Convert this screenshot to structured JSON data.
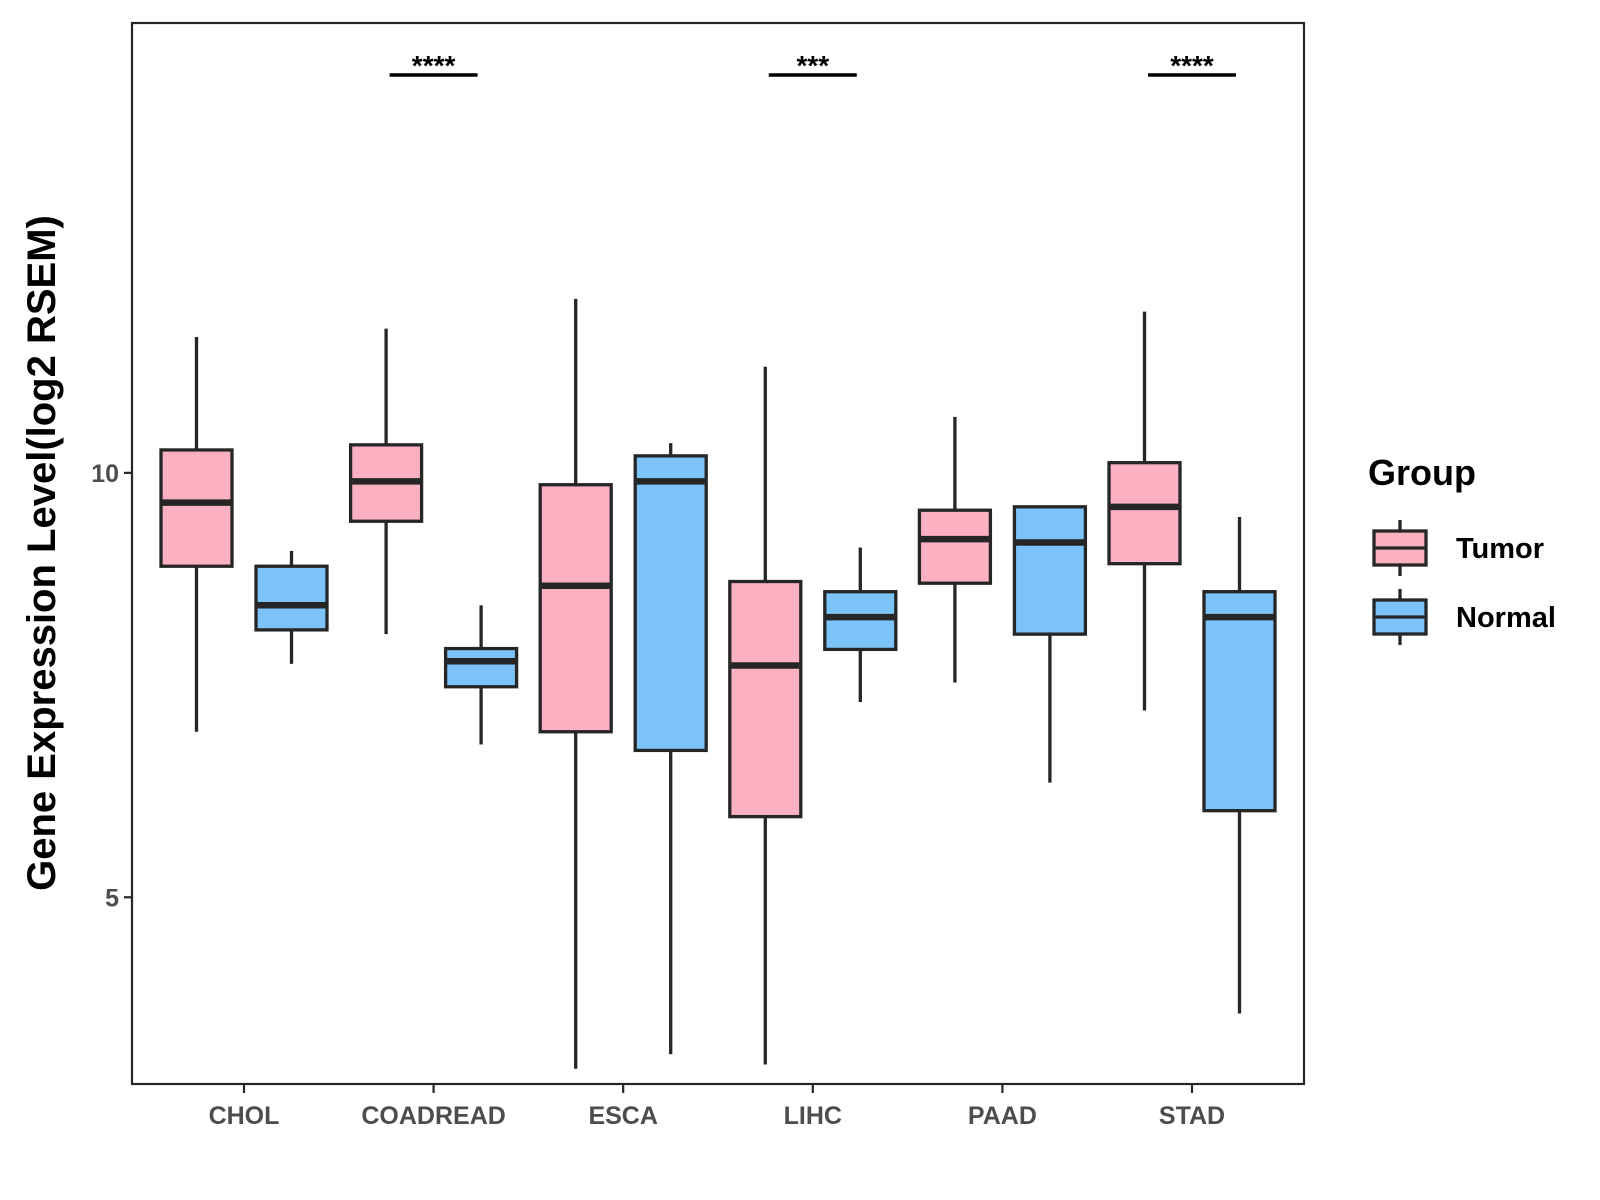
{
  "chart_data": {
    "type": "boxplot",
    "title": "",
    "xlabel": "",
    "ylabel": "Gene Expression Level(log2 RSEM)",
    "ylim": [
      2.8,
      15.3
    ],
    "yticks": [
      5,
      10
    ],
    "yticklabels": [
      "5",
      "10"
    ],
    "categories": [
      "CHOL",
      "COADREAD",
      "ESCA",
      "LIHC",
      "PAAD",
      "STAD"
    ],
    "legend": {
      "title": "Group",
      "position": "right"
    },
    "colors": {
      "Tumor": "#FCB1C3",
      "Normal": "#7BC3F8",
      "outline": "#262626"
    },
    "series": [
      {
        "name": "Tumor",
        "boxes": [
          {
            "category": "CHOL",
            "min": 6.95,
            "q1": 8.9,
            "median": 9.65,
            "q3": 10.27,
            "max": 11.6
          },
          {
            "category": "COADREAD",
            "min": 8.1,
            "q1": 9.43,
            "median": 9.9,
            "q3": 10.33,
            "max": 11.7
          },
          {
            "category": "ESCA",
            "min": 2.98,
            "q1": 6.95,
            "median": 8.67,
            "q3": 9.86,
            "max": 12.05
          },
          {
            "category": "LIHC",
            "min": 3.03,
            "q1": 5.95,
            "median": 7.73,
            "q3": 8.72,
            "max": 11.25
          },
          {
            "category": "PAAD",
            "min": 7.53,
            "q1": 8.7,
            "median": 9.22,
            "q3": 9.56,
            "max": 10.66
          },
          {
            "category": "STAD",
            "min": 7.2,
            "q1": 8.93,
            "median": 9.6,
            "q3": 10.12,
            "max": 11.9
          }
        ]
      },
      {
        "name": "Normal",
        "boxes": [
          {
            "category": "CHOL",
            "min": 7.75,
            "q1": 8.15,
            "median": 8.44,
            "q3": 8.9,
            "max": 9.08
          },
          {
            "category": "COADREAD",
            "min": 6.8,
            "q1": 7.48,
            "median": 7.78,
            "q3": 7.93,
            "max": 8.44
          },
          {
            "category": "ESCA",
            "min": 3.15,
            "q1": 6.73,
            "median": 9.9,
            "q3": 10.2,
            "max": 10.35
          },
          {
            "category": "LIHC",
            "min": 7.3,
            "q1": 7.92,
            "median": 8.3,
            "q3": 8.6,
            "max": 9.12
          },
          {
            "category": "PAAD",
            "min": 6.35,
            "q1": 8.1,
            "median": 9.18,
            "q3": 9.6,
            "max": 9.6
          },
          {
            "category": "STAD",
            "min": 3.63,
            "q1": 6.02,
            "median": 8.3,
            "q3": 8.6,
            "max": 9.48
          }
        ]
      }
    ],
    "annotations": [
      {
        "category": "CHOL",
        "text": ""
      },
      {
        "category": "COADREAD",
        "text": "****"
      },
      {
        "category": "ESCA",
        "text": ""
      },
      {
        "category": "LIHC",
        "text": "***"
      },
      {
        "category": "PAAD",
        "text": ""
      },
      {
        "category": "STAD",
        "text": "****"
      }
    ]
  }
}
